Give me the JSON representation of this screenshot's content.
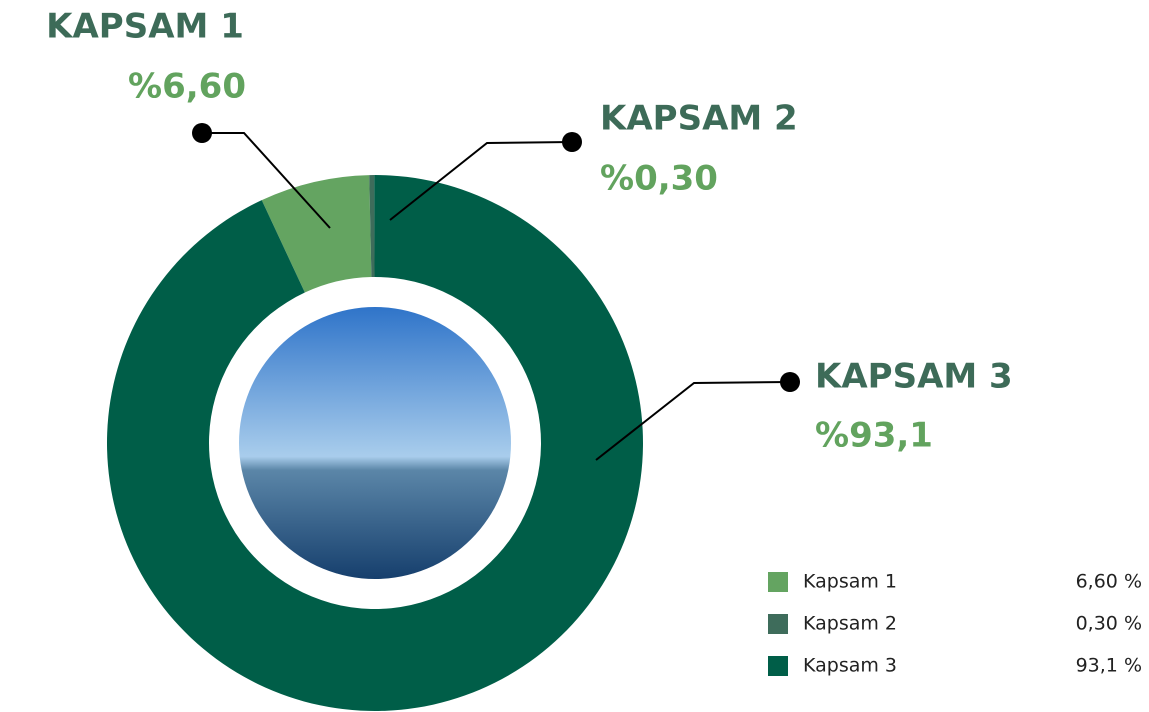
{
  "chart_data": {
    "type": "donut",
    "categories": [
      "Kapsam 1",
      "Kapsam 2",
      "Kapsam 3"
    ],
    "values": [
      6.6,
      0.3,
      93.1
    ],
    "value_labels": [
      "%6,60",
      "%0,30",
      "%93,1"
    ],
    "legend_value_labels": [
      "6,60 %",
      "0,30 %",
      "93,1 %"
    ],
    "callout_titles": [
      "KAPSAM 1",
      "KAPSAM 2",
      "KAPSAM 3"
    ],
    "colors": [
      "#64a461",
      "#3e6c5b",
      "#005e48"
    ]
  }
}
